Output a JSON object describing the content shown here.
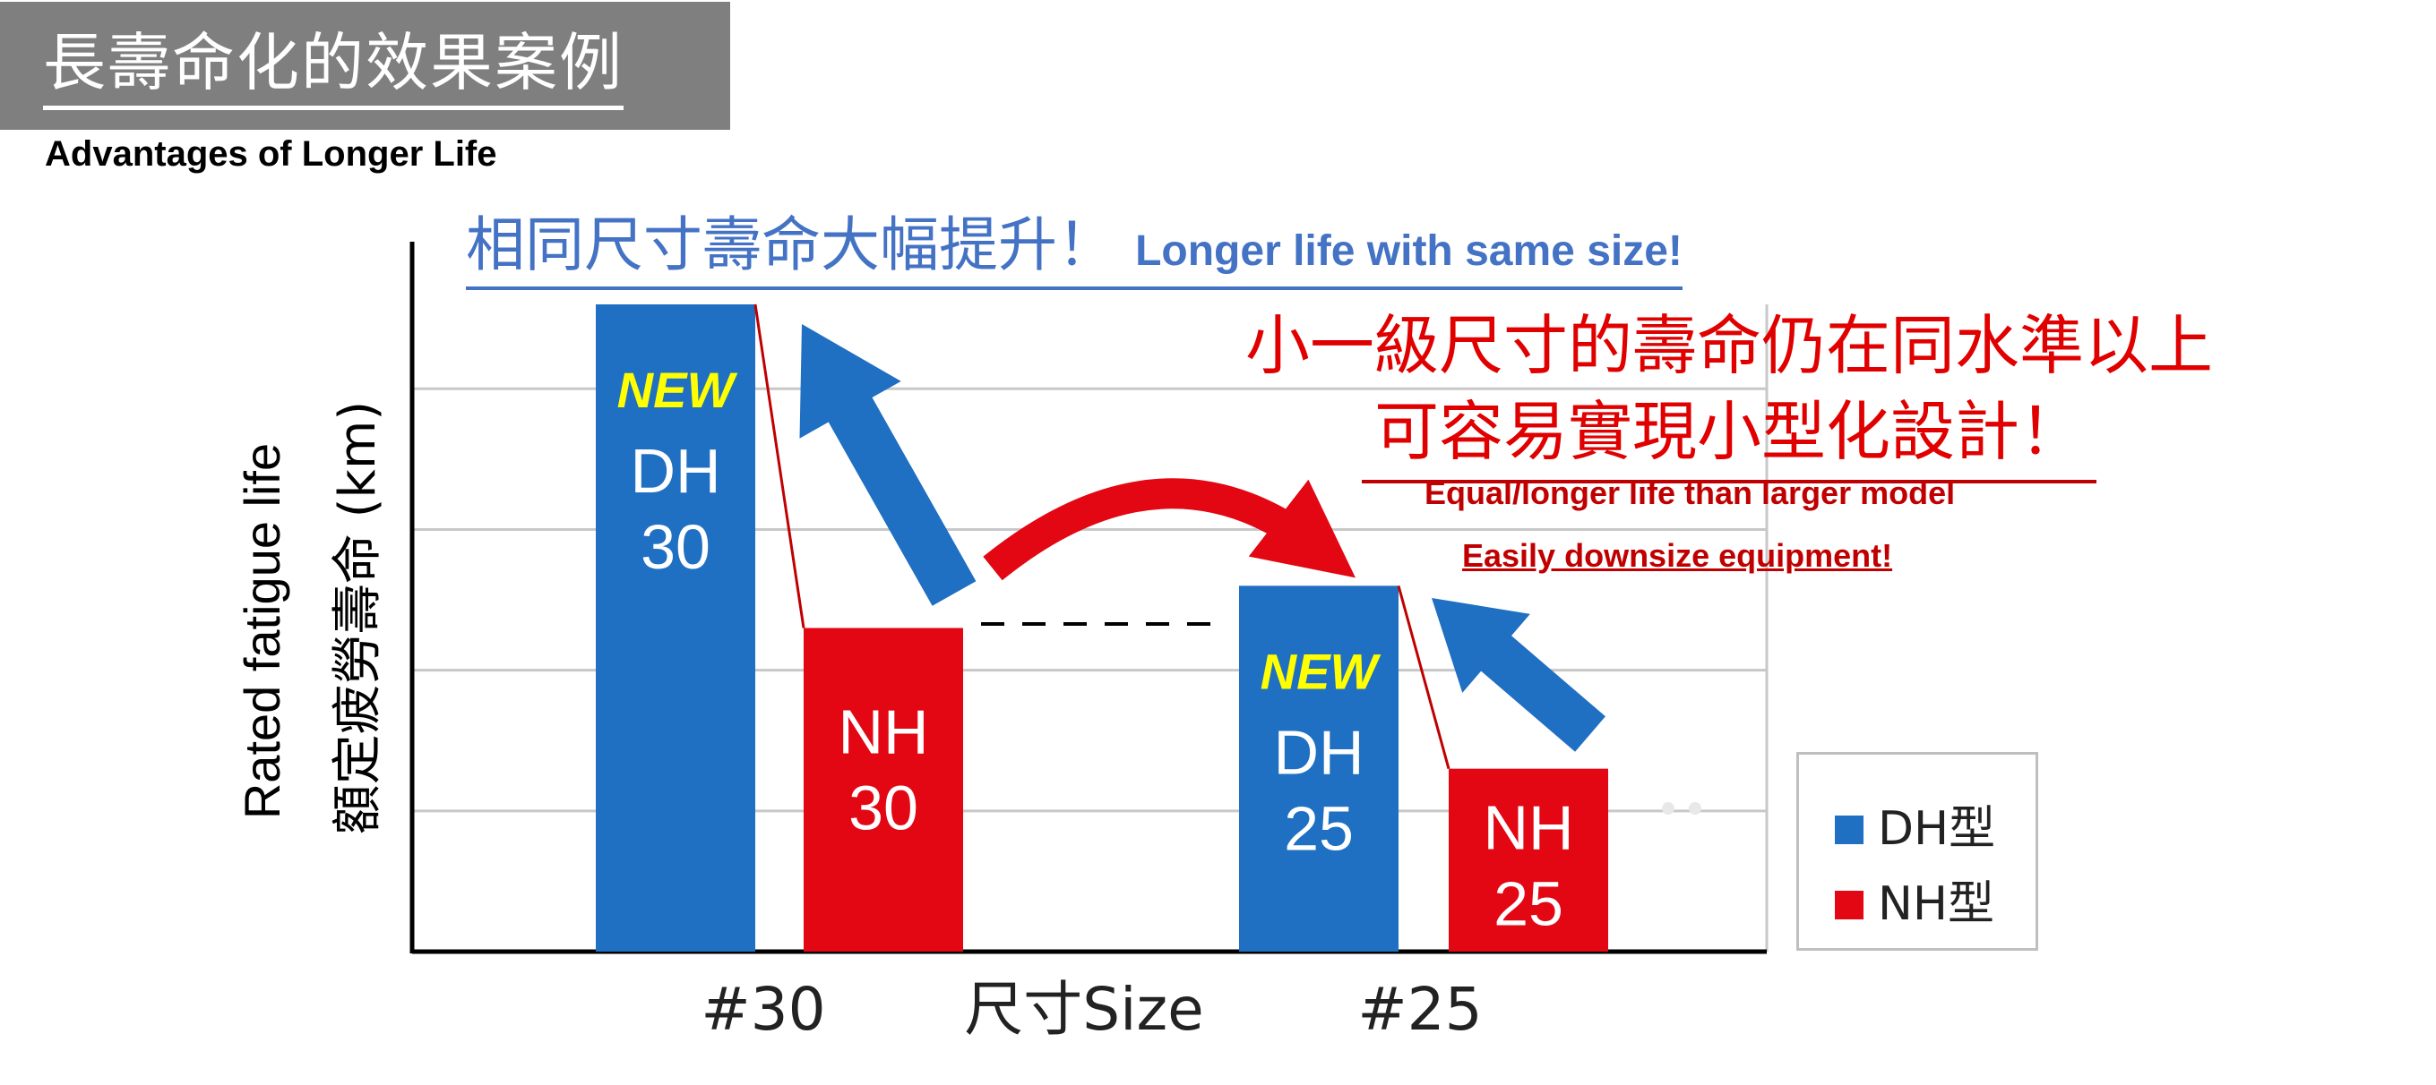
{
  "header": {
    "title": "長壽命化的效果案例",
    "subtitle": "Advantages of Longer Life"
  },
  "annotations": {
    "blue_cn": "相同尺寸壽命大幅提升！",
    "blue_en": "Longer life with same size!",
    "red_cn_line1": "小一級尺寸的壽命仍在同水準以上",
    "red_cn_line2": "可容易實現小型化設計！",
    "red_en_line1": "Equal/longer life than larger model",
    "red_en_line2": "Easily downsize equipment!"
  },
  "colors": {
    "dh": "#1f6fc2",
    "nh": "#e30613",
    "new_label": "#ffff00",
    "grid": "#c8c8c8"
  },
  "chart_data": {
    "type": "bar",
    "ylabel_en": "Rated fatigue life",
    "ylabel_cn": "額定疲勞壽命",
    "ylabel_unit": "(km)",
    "xlabel": "尺寸Size",
    "categories": [
      "#30",
      "#25"
    ],
    "series": [
      {
        "name": "DH型",
        "values": [
          4.6,
          2.6
        ],
        "bar_labels": [
          "DH\n30",
          "DH\n25"
        ],
        "tag": "NEW"
      },
      {
        "name": "NH型",
        "values": [
          2.3,
          1.3
        ],
        "bar_labels": [
          "NH\n30",
          "NH\n25"
        ]
      }
    ],
    "ylim": [
      0,
      5
    ],
    "gridlines": [
      1,
      2,
      3,
      4
    ],
    "legend_position": "bottom-right"
  }
}
